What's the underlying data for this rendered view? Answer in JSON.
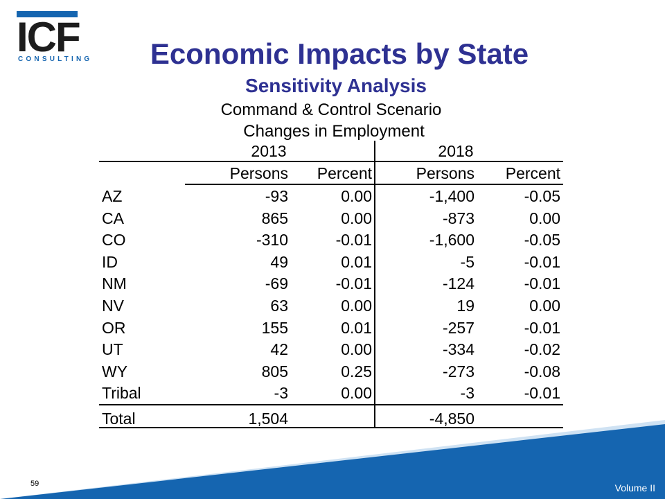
{
  "logo": {
    "main": "ICF",
    "sub": "CONSULTING"
  },
  "title": "Economic Impacts by State",
  "subtitle": "Sensitivity Analysis",
  "table": {
    "title1": "Command & Control Scenario",
    "title2": "Changes in Employment",
    "years": [
      "2013",
      "2018"
    ],
    "headers": [
      "Persons",
      "Percent",
      "Persons",
      "Percent"
    ],
    "rows": [
      [
        "AZ",
        "-93",
        "0.00",
        "-1,400",
        "-0.05"
      ],
      [
        "CA",
        "865",
        "0.00",
        "-873",
        "0.00"
      ],
      [
        "CO",
        "-310",
        "-0.01",
        "-1,600",
        "-0.05"
      ],
      [
        "ID",
        "49",
        "0.01",
        "-5",
        "-0.01"
      ],
      [
        "NM",
        "-69",
        "-0.01",
        "-124",
        "-0.01"
      ],
      [
        "NV",
        "63",
        "0.00",
        "19",
        "0.00"
      ],
      [
        "OR",
        "155",
        "0.01",
        "-257",
        "-0.01"
      ],
      [
        "UT",
        "42",
        "0.00",
        "-334",
        "-0.02"
      ],
      [
        "WY",
        "805",
        "0.25",
        "-273",
        "-0.08"
      ],
      [
        "Tribal",
        "-3",
        "0.00",
        "-3",
        "-0.01"
      ]
    ],
    "total": [
      "Total",
      "1,504",
      "",
      "-4,850",
      ""
    ]
  },
  "footer": {
    "page_number": "59",
    "volume": "Volume II"
  },
  "colors": {
    "title": "#2e3192",
    "band": "#1565b0",
    "band_light": "#cfe2f3"
  }
}
